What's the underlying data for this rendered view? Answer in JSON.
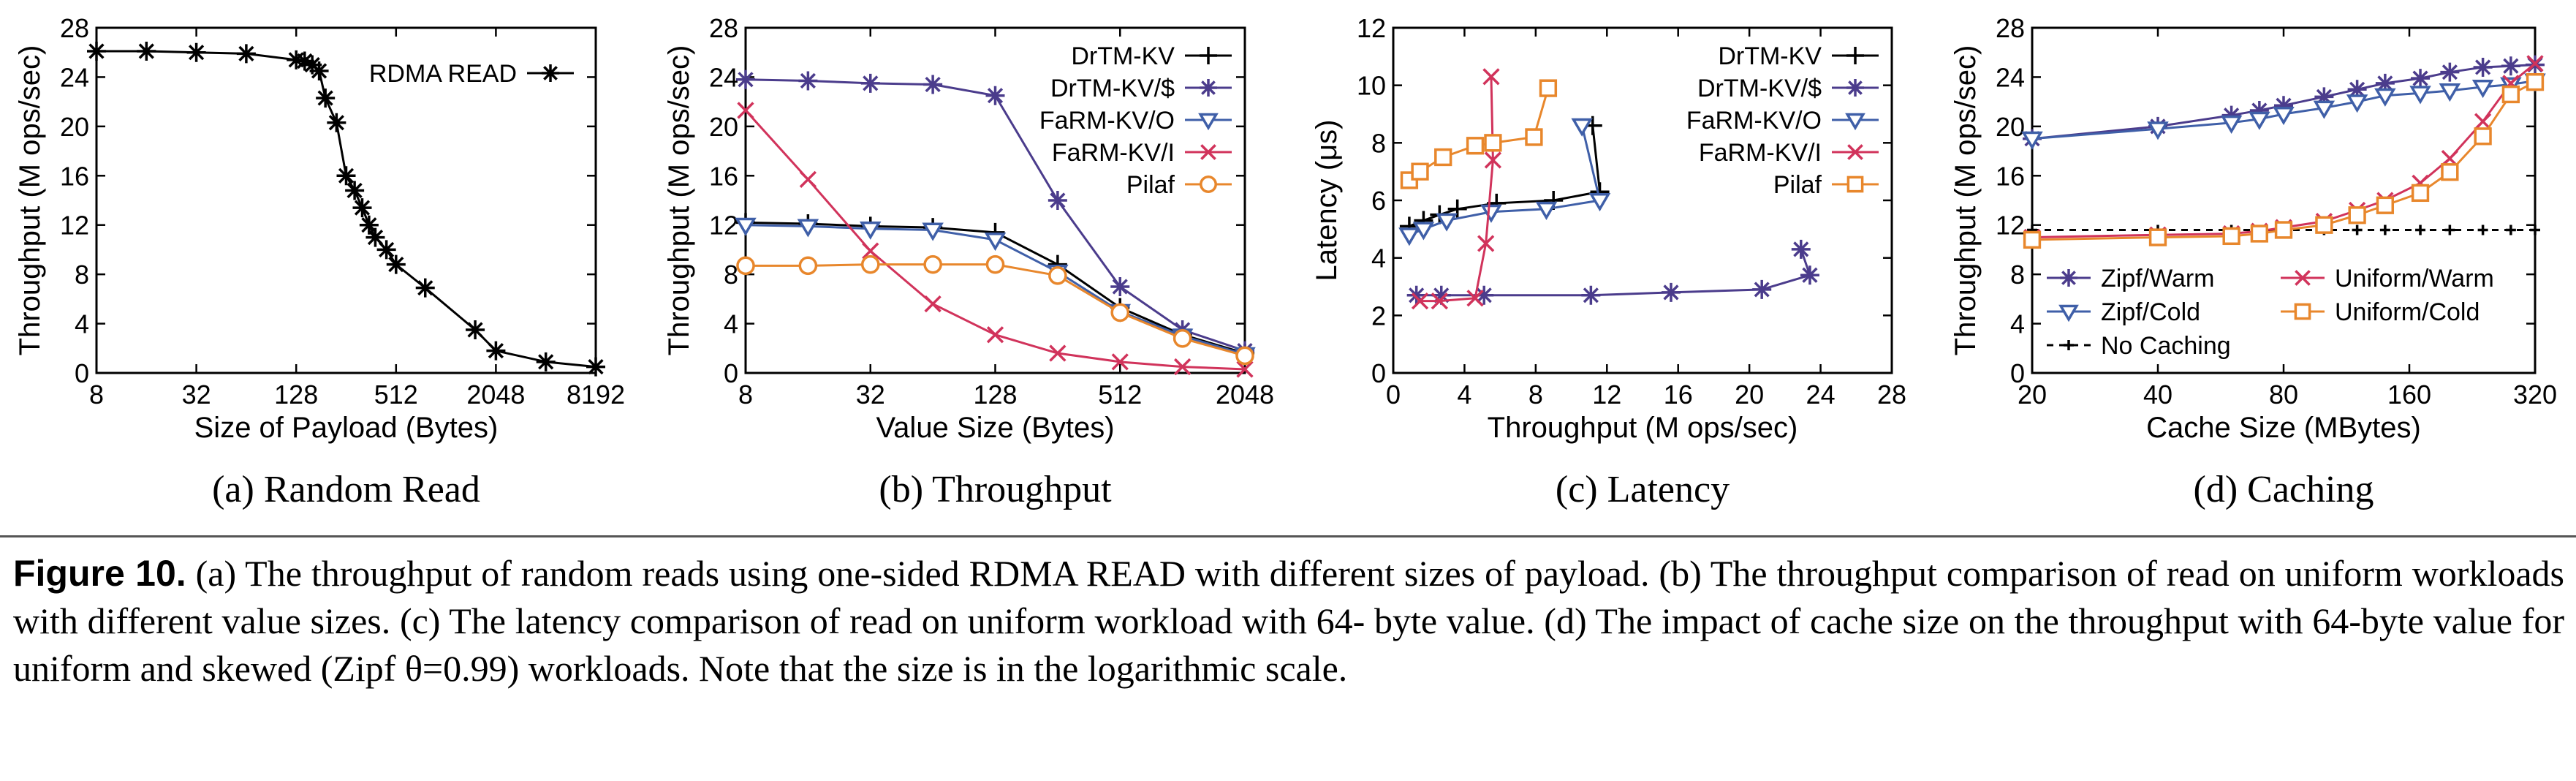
{
  "figure": {
    "label": "Figure 10.",
    "caption_lines": [
      "(a) The throughput of random reads using one-sided RDMA READ with different sizes of payload. (b) The throughput",
      "comparison of read on uniform workloads with different value sizes. (c) The latency comparison of read on uniform workload with 64-",
      "byte value. (d) The impact of cache size on the throughput with 64-byte value for uniform and skewed (Zipf θ=0.99) workloads. Note that",
      "the size is in the logarithmic scale."
    ]
  },
  "chart_data": [
    {
      "type": "line",
      "subtitle": "(a) Random Read",
      "xlabel": "Size of Payload (Bytes)",
      "ylabel": "Throughput (M ops/sec)",
      "xscale": "log2",
      "xlim": [
        8,
        8192
      ],
      "ylim": [
        0,
        28
      ],
      "xticks": [
        8,
        32,
        128,
        512,
        2048,
        8192
      ],
      "yticks": [
        0,
        4,
        8,
        12,
        16,
        20,
        24,
        28
      ],
      "legend_position": "top-right",
      "series": [
        {
          "name": "RDMA READ",
          "color": "#000000",
          "marker": "star",
          "x": [
            8,
            16,
            32,
            64,
            128,
            144,
            160,
            176,
            192,
            224,
            256,
            288,
            320,
            352,
            384,
            448,
            512,
            768,
            1536,
            2048,
            4096,
            8192
          ],
          "y": [
            26.1,
            26.1,
            26.0,
            25.9,
            25.4,
            25.3,
            25.0,
            24.5,
            22.3,
            20.3,
            16.0,
            14.8,
            13.4,
            12.0,
            11.0,
            10.0,
            8.8,
            6.9,
            3.5,
            1.8,
            0.9,
            0.5
          ]
        }
      ]
    },
    {
      "type": "line",
      "subtitle": "(b) Throughput",
      "xlabel": "Value Size (Bytes)",
      "ylabel": "Throughput (M ops/sec)",
      "xscale": "log2",
      "xlim": [
        8,
        2048
      ],
      "ylim": [
        0,
        28
      ],
      "xticks": [
        8,
        32,
        128,
        512,
        2048
      ],
      "yticks": [
        0,
        4,
        8,
        12,
        16,
        20,
        24,
        28
      ],
      "legend_position": "top-right",
      "series": [
        {
          "name": "DrTM-KV",
          "color": "#000000",
          "marker": "plus",
          "x": [
            8,
            16,
            32,
            64,
            128,
            256,
            512,
            1024,
            2048
          ],
          "y": [
            12.2,
            12.1,
            11.9,
            11.8,
            11.4,
            8.8,
            5.3,
            3.1,
            1.6
          ]
        },
        {
          "name": "DrTM-KV/$",
          "color": "#4b3c8c",
          "marker": "star",
          "x": [
            8,
            16,
            32,
            64,
            128,
            256,
            512,
            1024,
            2048
          ],
          "y": [
            23.8,
            23.7,
            23.5,
            23.4,
            22.5,
            14.0,
            7.0,
            3.5,
            1.8
          ]
        },
        {
          "name": "FaRM-KV/O",
          "color": "#3f5fa8",
          "marker": "tri-down",
          "x": [
            8,
            16,
            32,
            64,
            128,
            256,
            512,
            1024,
            2048
          ],
          "y": [
            12.0,
            11.9,
            11.7,
            11.6,
            10.8,
            8.2,
            5.0,
            3.0,
            1.5
          ]
        },
        {
          "name": "FaRM-KV/I",
          "color": "#d1335b",
          "marker": "x",
          "x": [
            8,
            16,
            32,
            64,
            128,
            256,
            512,
            1024,
            2048
          ],
          "y": [
            21.3,
            15.7,
            9.9,
            5.6,
            3.1,
            1.6,
            0.9,
            0.5,
            0.3
          ]
        },
        {
          "name": "Pilaf",
          "color": "#e8872c",
          "marker": "circle",
          "x": [
            8,
            16,
            32,
            64,
            128,
            256,
            512,
            1024,
            2048
          ],
          "y": [
            8.7,
            8.7,
            8.8,
            8.8,
            8.8,
            7.9,
            4.9,
            2.8,
            1.4
          ]
        }
      ]
    },
    {
      "type": "line",
      "subtitle": "(c) Latency",
      "xlabel": "Throughput (M ops/sec)",
      "ylabel": "Latency (μs)",
      "xscale": "linear",
      "xlim": [
        0,
        28
      ],
      "ylim": [
        0,
        12
      ],
      "xticks": [
        0,
        4,
        8,
        12,
        16,
        20,
        24,
        28
      ],
      "yticks": [
        0,
        2,
        4,
        6,
        8,
        10,
        12
      ],
      "legend_position": "top-right",
      "series": [
        {
          "name": "DrTM-KV",
          "color": "#000000",
          "marker": "plus",
          "x": [
            0.9,
            1.7,
            2.6,
            3.6,
            5.8,
            9.0,
            11.6,
            11.2
          ],
          "y": [
            5.1,
            5.3,
            5.5,
            5.7,
            5.9,
            6.0,
            6.3,
            8.6
          ]
        },
        {
          "name": "DrTM-KV/$",
          "color": "#4b3c8c",
          "marker": "star",
          "x": [
            1.3,
            2.7,
            5.1,
            11.1,
            15.6,
            20.7,
            23.4,
            22.9
          ],
          "y": [
            2.7,
            2.7,
            2.7,
            2.7,
            2.8,
            2.9,
            3.4,
            4.3
          ]
        },
        {
          "name": "FaRM-KV/O",
          "color": "#3f5fa8",
          "marker": "tri-down",
          "x": [
            0.9,
            1.7,
            3.0,
            5.5,
            8.6,
            11.6,
            10.6
          ],
          "y": [
            4.8,
            5.0,
            5.3,
            5.6,
            5.7,
            6.0,
            8.6
          ]
        },
        {
          "name": "FaRM-KV/I",
          "color": "#d1335b",
          "marker": "x",
          "x": [
            1.5,
            2.6,
            4.6,
            5.2,
            5.6,
            5.5
          ],
          "y": [
            2.5,
            2.5,
            2.6,
            4.5,
            7.4,
            10.3
          ]
        },
        {
          "name": "Pilaf",
          "color": "#e8872c",
          "marker": "square",
          "x": [
            0.9,
            1.5,
            2.8,
            4.6,
            5.6,
            7.9,
            8.7
          ],
          "y": [
            6.7,
            7.0,
            7.5,
            7.9,
            8.0,
            8.2,
            9.9
          ]
        }
      ]
    },
    {
      "type": "line",
      "subtitle": "(d) Caching",
      "xlabel": "Cache Size (MBytes)",
      "ylabel": "Throughput (M ops/sec)",
      "xscale": "log2",
      "xlim": [
        20,
        320
      ],
      "ylim": [
        0,
        28
      ],
      "xticks": [
        20,
        40,
        80,
        160,
        320
      ],
      "yticks": [
        0,
        4,
        8,
        12,
        16,
        20,
        24,
        28
      ],
      "legend_position": "center-left",
      "series": [
        {
          "name": "Zipf/Warm",
          "color": "#4b3c8c",
          "marker": "star",
          "x": [
            20,
            40,
            60,
            70,
            80,
            100,
            120,
            140,
            170,
            200,
            240,
            280,
            320
          ],
          "y": [
            19.0,
            20.0,
            20.9,
            21.3,
            21.7,
            22.4,
            23.0,
            23.5,
            23.9,
            24.4,
            24.8,
            24.9,
            25.0
          ]
        },
        {
          "name": "Zipf/Cold",
          "color": "#3f5fa8",
          "marker": "tri-down",
          "x": [
            20,
            40,
            60,
            70,
            80,
            100,
            120,
            140,
            170,
            200,
            240,
            280,
            320
          ],
          "y": [
            19.0,
            19.8,
            20.3,
            20.6,
            21.0,
            21.5,
            22.0,
            22.5,
            22.7,
            22.9,
            23.2,
            23.4,
            23.7
          ]
        },
        {
          "name": "No Caching",
          "color": "#000000",
          "marker": "plus",
          "dashed": true,
          "x": [
            20,
            40,
            60,
            70,
            80,
            100,
            120,
            140,
            170,
            200,
            240,
            280,
            320
          ],
          "y": [
            11.6,
            11.6,
            11.6,
            11.6,
            11.6,
            11.6,
            11.6,
            11.6,
            11.6,
            11.6,
            11.6,
            11.6,
            11.6
          ]
        },
        {
          "name": "Uniform/Warm",
          "color": "#d1335b",
          "marker": "x",
          "x": [
            20,
            40,
            60,
            70,
            80,
            100,
            120,
            140,
            170,
            200,
            240,
            280,
            320
          ],
          "y": [
            11.0,
            11.2,
            11.3,
            11.5,
            11.8,
            12.3,
            13.2,
            14.0,
            15.4,
            17.4,
            20.4,
            23.5,
            25.1
          ]
        },
        {
          "name": "Uniform/Cold",
          "color": "#e8872c",
          "marker": "square",
          "x": [
            20,
            40,
            60,
            70,
            80,
            100,
            120,
            140,
            170,
            200,
            240,
            280,
            320
          ],
          "y": [
            10.8,
            11.0,
            11.1,
            11.3,
            11.6,
            12.0,
            12.8,
            13.6,
            14.6,
            16.3,
            19.2,
            22.6,
            23.6
          ]
        }
      ]
    }
  ]
}
